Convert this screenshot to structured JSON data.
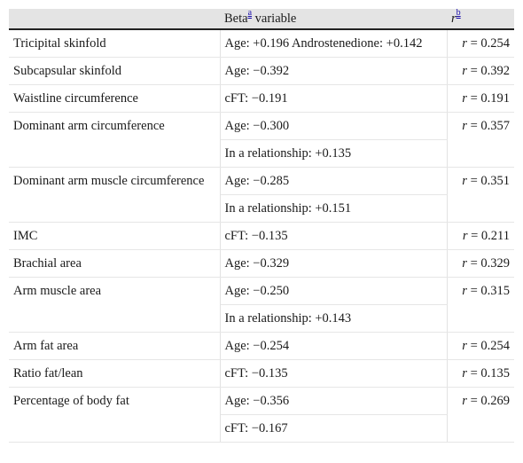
{
  "header": {
    "col1": "",
    "col2_prefix": "Beta",
    "col2_sup": "a",
    "col2_suffix": " variable",
    "col3_prefix": "r",
    "col3_sup": "b"
  },
  "rows": [
    {
      "label": "Tricipital skinfold",
      "values": [
        "Age: +0.196 Androstenedione: +0.142"
      ],
      "r": "0.254"
    },
    {
      "label": "Subcapsular skinfold",
      "values": [
        "Age: −0.392"
      ],
      "r": "0.392"
    },
    {
      "label": "Waistline circumference",
      "values": [
        "cFT: −0.191"
      ],
      "r": "0.191"
    },
    {
      "label": "Dominant arm circumference",
      "values": [
        "Age: −0.300",
        "In a relationship: +0.135"
      ],
      "r": "0.357"
    },
    {
      "label": "Dominant arm muscle circumference",
      "values": [
        "Age: −0.285",
        "In a relationship: +0.151"
      ],
      "r": "0.351"
    },
    {
      "label": "IMC",
      "values": [
        "cFT: −0.135"
      ],
      "r": "0.211"
    },
    {
      "label": "Brachial area",
      "values": [
        "Age: −0.329"
      ],
      "r": "0.329"
    },
    {
      "label": "Arm muscle area",
      "values": [
        "Age: −0.250",
        "In a relationship: +0.143"
      ],
      "r": "0.315"
    },
    {
      "label": "Arm fat area",
      "values": [
        "Age: −0.254"
      ],
      "r": "0.254"
    },
    {
      "label": "Ratio fat/lean",
      "values": [
        "cFT: −0.135"
      ],
      "r": "0.135"
    },
    {
      "label": "Percentage of body fat",
      "values": [
        "Age: −0.356",
        "cFT: −0.167"
      ],
      "r": "0.269"
    }
  ],
  "r_prefix": "r = "
}
